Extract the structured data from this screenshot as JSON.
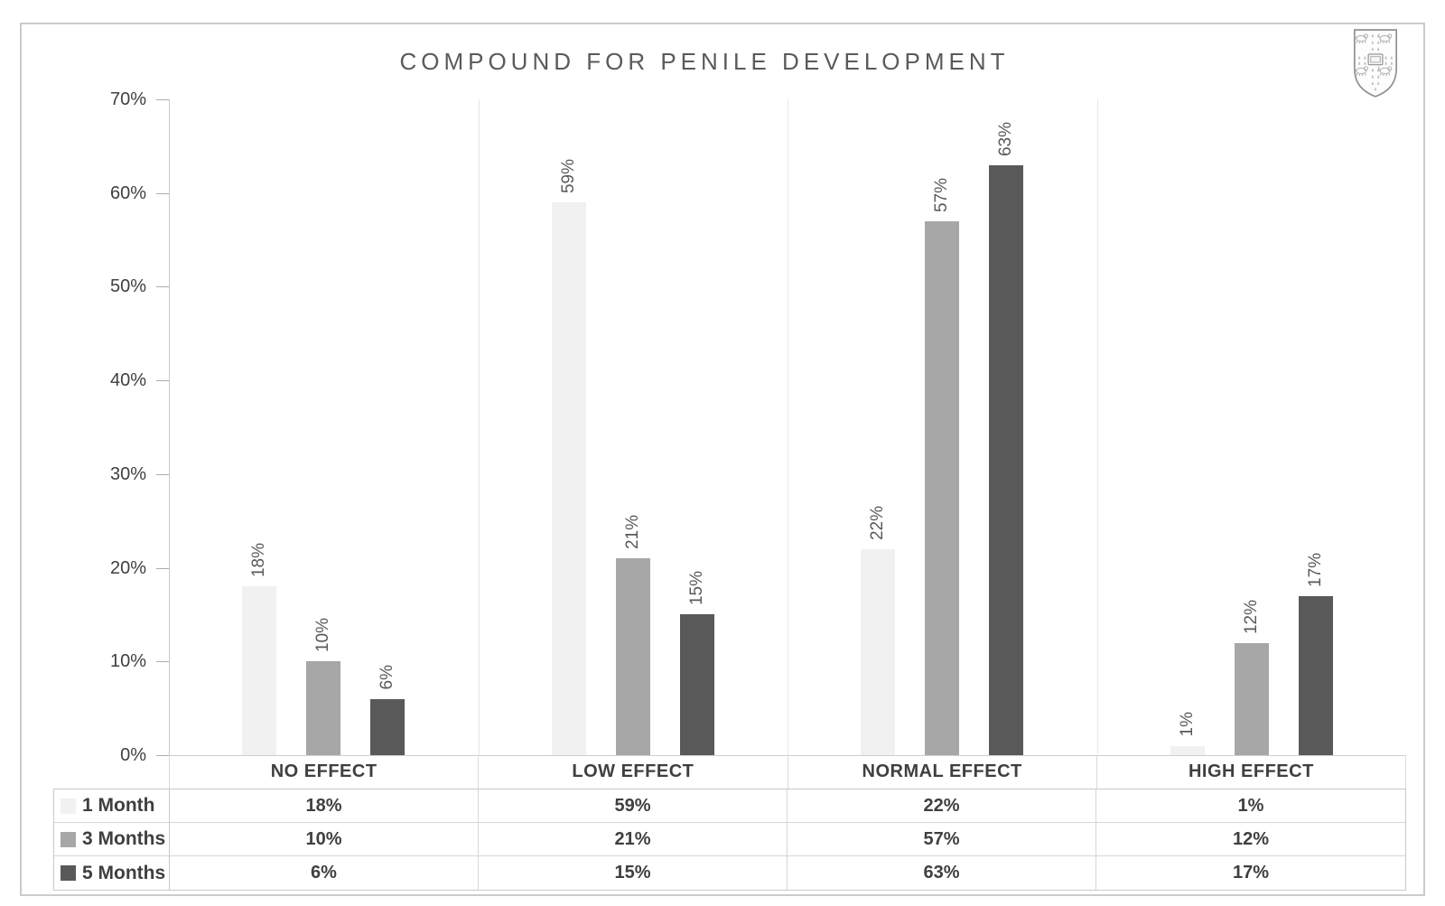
{
  "frame_title": "COMPOUND FOR PENILE DEVELOPMENT",
  "logo": {
    "icon": "university-crest-shield"
  },
  "chart_data": {
    "type": "bar",
    "title": "COMPOUND FOR PENILE DEVELOPMENT",
    "categories": [
      "NO EFFECT",
      "LOW EFFECT",
      "NORMAL EFFECT",
      "HIGH EFFECT"
    ],
    "series": [
      {
        "name": "1 Month",
        "color": "#f1f1f1",
        "values": [
          18,
          59,
          22,
          1
        ]
      },
      {
        "name": "3 Months",
        "color": "#a7a7a7",
        "values": [
          10,
          21,
          57,
          12
        ]
      },
      {
        "name": "5 Months",
        "color": "#595959",
        "values": [
          6,
          15,
          63,
          17
        ]
      }
    ],
    "value_label_suffix": "%",
    "data_labels_rotated_vertical": true,
    "yticks": [
      "0%",
      "10%",
      "20%",
      "30%",
      "40%",
      "50%",
      "60%",
      "70%"
    ],
    "ylim": [
      0,
      70
    ],
    "xlabel": "",
    "ylabel": "",
    "grid": "vertical-category-separators-only",
    "legend_position": "data-table-left-column",
    "data_table_shown": true,
    "colors": {
      "title_text": "#5a5a5a",
      "axis_text": "#3f3f3f",
      "bar_label_text": "#595959",
      "axis_line": "#c9c9c9",
      "separator_line": "#e8e8e8",
      "table_border": "#c9c9c9",
      "background": "#ffffff"
    }
  }
}
